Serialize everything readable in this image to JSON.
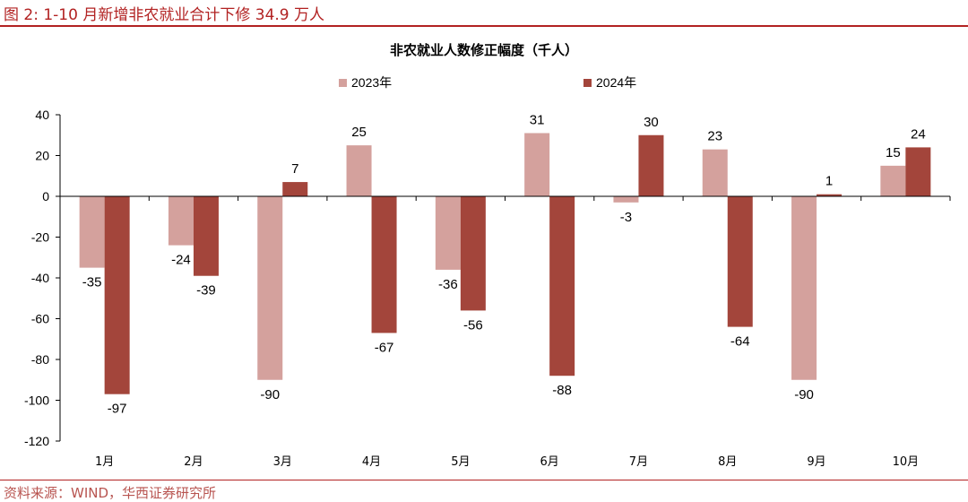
{
  "figure": {
    "label": "图 2:",
    "title": "1-10 月新增非农就业合计下修 34.9 万人",
    "source": "资料来源：WIND，华西证券研究所"
  },
  "colors": {
    "accent": "#b22222",
    "series_2023": "#d4a19d",
    "series_2024": "#a3453b"
  },
  "chart_data": {
    "type": "bar",
    "title": "非农就业人数修正幅度（千人）",
    "xlabel": "",
    "ylabel": "",
    "categories": [
      "1月",
      "2月",
      "3月",
      "4月",
      "5月",
      "6月",
      "7月",
      "8月",
      "9月",
      "10月"
    ],
    "series": [
      {
        "name": "2023年",
        "values": [
          -35,
          -24,
          -90,
          25,
          -36,
          31,
          -3,
          23,
          -90,
          15
        ]
      },
      {
        "name": "2024年",
        "values": [
          -97,
          -39,
          7,
          -67,
          -56,
          -88,
          30,
          -64,
          1,
          24
        ]
      }
    ],
    "ylim": [
      -120,
      40
    ],
    "yticks": [
      40,
      20,
      0,
      -20,
      -40,
      -60,
      -80,
      -100,
      -120
    ],
    "legend": "top-center",
    "grid": false
  }
}
